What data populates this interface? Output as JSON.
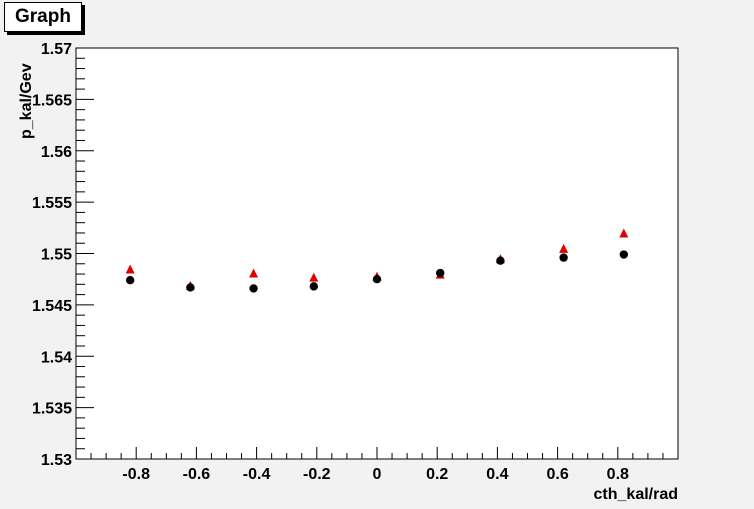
{
  "window": {
    "title": "Graph"
  },
  "chart_data": {
    "type": "scatter",
    "title": "Graph",
    "xlabel": "cth_kal/rad",
    "ylabel": "p_kal/Gev",
    "xlim": [
      -1.0,
      1.0
    ],
    "ylim": [
      1.53,
      1.57
    ],
    "x_ticks": [
      -0.8,
      -0.6,
      -0.4,
      -0.2,
      0,
      0.2,
      0.4,
      0.6,
      0.8
    ],
    "x_tick_labels": [
      "-0.8",
      "-0.6",
      "-0.4",
      "-0.2",
      "0",
      "0.2",
      "0.4",
      "0.6",
      "0.8"
    ],
    "y_ticks": [
      1.53,
      1.535,
      1.54,
      1.545,
      1.55,
      1.555,
      1.56,
      1.565,
      1.57
    ],
    "y_tick_labels": [
      "1.53",
      "1.535",
      "1.54",
      "1.545",
      "1.55",
      "1.555",
      "1.56",
      "1.565",
      "1.57"
    ],
    "grid": false,
    "series": [
      {
        "marker": "circle",
        "color": "#000000",
        "x": [
          -0.82,
          -0.62,
          -0.41,
          -0.21,
          0.0,
          0.21,
          0.41,
          0.62,
          0.82
        ],
        "y": [
          1.5474,
          1.5467,
          1.5466,
          1.5468,
          1.5475,
          1.5481,
          1.5493,
          1.5496,
          1.5499
        ]
      },
      {
        "marker": "triangle",
        "color": "#e00000",
        "x": [
          -0.82,
          -0.62,
          -0.41,
          -0.21,
          0.0,
          0.21,
          0.41,
          0.62,
          0.82
        ],
        "y": [
          1.5484,
          1.5468,
          1.548,
          1.5476,
          1.5477,
          1.5479,
          1.5494,
          1.5504,
          1.5519
        ]
      }
    ]
  }
}
